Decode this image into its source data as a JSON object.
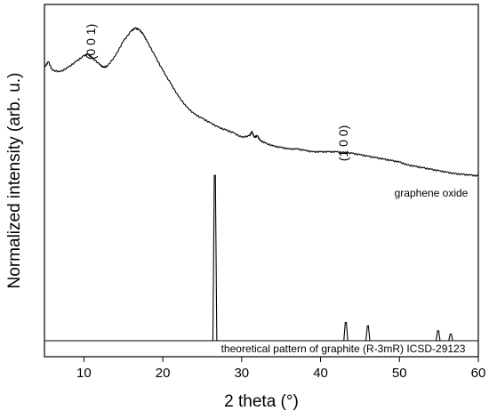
{
  "chart_data": {
    "type": "line",
    "xlabel": "2 theta (°)",
    "ylabel": "Normalized intensity (arb. u.)",
    "xlim": [
      5,
      60
    ],
    "x_ticks": [
      10,
      20,
      30,
      40,
      50,
      60
    ],
    "x_tick_labels": [
      "10",
      "20",
      "30",
      "40",
      "50",
      "60"
    ],
    "y_ticks_visible": false,
    "grid": false,
    "annotations": [
      {
        "text": "(0 0 1)",
        "x": 10.5,
        "rotated": true
      },
      {
        "text": "(1 0 0)",
        "x": 43.5,
        "rotated": true
      },
      {
        "text": "graphene oxide",
        "x": 55.5
      },
      {
        "text": "theoretical pattern of graphite (R-3mR) ICSD-29123",
        "x": 42.5
      }
    ],
    "series": [
      {
        "key": "graphene_oxide",
        "x": [
          5,
          5.5,
          6,
          7,
          8,
          9,
          10,
          10.5,
          11,
          12,
          12.5,
          13,
          14,
          15,
          16,
          16.5,
          17,
          17.5,
          18,
          19,
          20,
          21,
          22,
          23,
          24,
          25,
          26,
          27,
          28,
          29,
          30,
          31,
          31.3,
          31.6,
          32,
          32.3,
          33,
          34,
          35,
          36,
          37,
          38,
          39,
          40,
          41,
          42,
          43,
          44,
          45,
          46,
          47,
          48,
          49,
          50,
          51,
          52,
          53,
          54,
          55,
          56,
          57,
          58,
          59,
          60
        ],
        "y": [
          82,
          86,
          80,
          79,
          82,
          86,
          90,
          91,
          89,
          84,
          82,
          83,
          90,
          100,
          107,
          109,
          108,
          105,
          100,
          90,
          80,
          71,
          62,
          55,
          50,
          47,
          44,
          41,
          39,
          37,
          34,
          35,
          38,
          34,
          35,
          32,
          30,
          28,
          27,
          26,
          26,
          25,
          24,
          24,
          24,
          24,
          23.5,
          23,
          22,
          21,
          20,
          19,
          18,
          17,
          15,
          14,
          13,
          12,
          11,
          10,
          9,
          8.5,
          8,
          7.5
        ]
      },
      {
        "key": "graphite_theoretical",
        "peaks": [
          {
            "x": 26.6,
            "y": 100
          },
          {
            "x": 43.2,
            "y": 11
          },
          {
            "x": 46.0,
            "y": 9
          },
          {
            "x": 54.9,
            "y": 6
          },
          {
            "x": 56.5,
            "y": 4
          }
        ]
      }
    ]
  }
}
